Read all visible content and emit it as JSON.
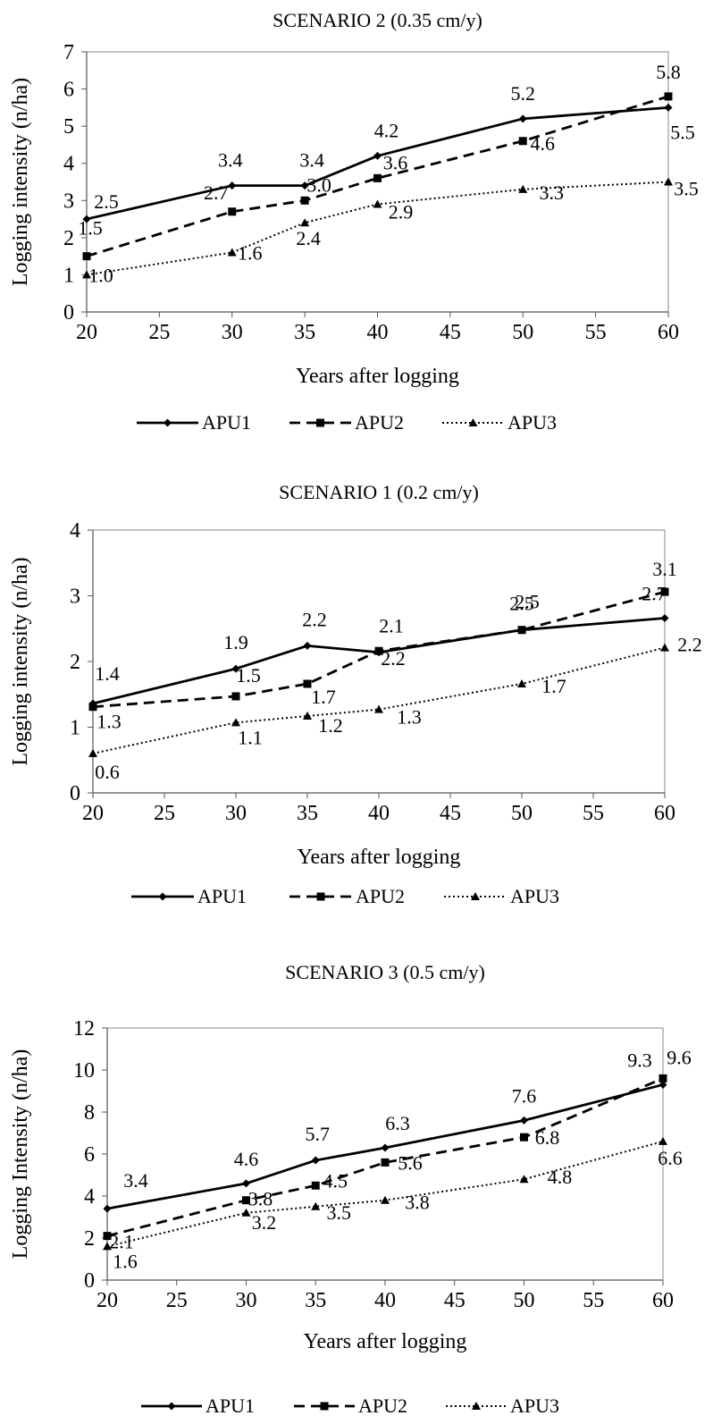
{
  "chart_data": [
    {
      "type": "line",
      "title": "SCENARIO 2 (0.35 cm/y)",
      "xlabel": "Years after logging",
      "ylabel": "Logging intensity (n/ha)",
      "x": [
        20,
        30,
        35,
        40,
        50,
        60
      ],
      "xticks": [
        20,
        25,
        30,
        35,
        40,
        45,
        50,
        55,
        60
      ],
      "xlim": [
        20,
        60
      ],
      "ylim": [
        0,
        7
      ],
      "yticks": [
        0,
        1,
        2,
        3,
        4,
        5,
        6,
        7
      ],
      "grid": false,
      "legend": "bottom",
      "series": [
        {
          "name": "APU1",
          "style": "solid",
          "marker": "diamond",
          "values": [
            2.5,
            3.4,
            3.4,
            4.2,
            5.2,
            5.5
          ],
          "labels": [
            "2.5",
            "3.4",
            "3.4",
            "4.2",
            "5.2",
            "5.5"
          ]
        },
        {
          "name": "APU2",
          "style": "dashed",
          "marker": "square",
          "values": [
            1.5,
            2.7,
            3.0,
            3.6,
            4.6,
            5.8
          ],
          "labels": [
            "1.5",
            "2.7",
            "3.0",
            "3.6",
            "4.6",
            "5.8"
          ]
        },
        {
          "name": "APU3",
          "style": "dotted",
          "marker": "triangle",
          "values": [
            1.0,
            1.6,
            2.4,
            2.9,
            3.3,
            3.5
          ],
          "labels": [
            "1.0",
            "1.6",
            "2.4",
            "2.9",
            "3.3",
            "3.5"
          ]
        }
      ]
    },
    {
      "type": "line",
      "title": "SCENARIO 1 (0.2 cm/y)",
      "xlabel": "Years after logging",
      "ylabel": "Logging intensity (n/ha)",
      "x": [
        20,
        30,
        35,
        40,
        50,
        60
      ],
      "xticks": [
        20,
        25,
        30,
        35,
        40,
        45,
        50,
        55,
        60
      ],
      "xlim": [
        20,
        60
      ],
      "ylim": [
        0,
        4
      ],
      "yticks": [
        0,
        1,
        2,
        3,
        4
      ],
      "grid": false,
      "legend": "bottom",
      "series": [
        {
          "name": "APU1",
          "style": "solid",
          "marker": "diamond",
          "values": [
            1.36,
            1.89,
            2.24,
            2.14,
            2.48,
            2.66
          ],
          "labels": [
            "1.4",
            "1.9",
            "2.2",
            "2.1",
            "2.5",
            "2.7"
          ]
        },
        {
          "name": "APU2",
          "style": "dashed",
          "marker": "square",
          "values": [
            1.31,
            1.47,
            1.66,
            2.16,
            2.48,
            3.06
          ],
          "labels": [
            "1.3",
            "1.5",
            "1.7",
            "2.2",
            "2.5",
            "3.1"
          ]
        },
        {
          "name": "APU3",
          "style": "dotted",
          "marker": "triangle",
          "values": [
            0.6,
            1.07,
            1.17,
            1.27,
            1.66,
            2.21
          ],
          "labels": [
            "0.6",
            "1.1",
            "1.2",
            "1.3",
            "1.7",
            "2.2"
          ]
        }
      ]
    },
    {
      "type": "line",
      "title": "SCENARIO 3 (0.5 cm/y)",
      "xlabel": "Years after logging",
      "ylabel": "Logging Intensity (n/ha)",
      "x": [
        20,
        30,
        35,
        40,
        50,
        60
      ],
      "xticks": [
        20,
        25,
        30,
        35,
        40,
        45,
        50,
        55,
        60
      ],
      "xlim": [
        20,
        60
      ],
      "ylim": [
        0,
        12
      ],
      "yticks": [
        0,
        2,
        4,
        6,
        8,
        10,
        12
      ],
      "grid": false,
      "legend": "bottom",
      "series": [
        {
          "name": "APU1",
          "style": "solid",
          "marker": "diamond",
          "values": [
            3.4,
            4.6,
            5.7,
            6.3,
            7.6,
            9.3
          ],
          "labels": [
            "3.4",
            "4.6",
            "5.7",
            "6.3",
            "7.6",
            "9.3"
          ]
        },
        {
          "name": "APU2",
          "style": "dashed",
          "marker": "square",
          "values": [
            2.1,
            3.8,
            4.5,
            5.6,
            6.8,
            9.6
          ],
          "labels": [
            "2.1",
            "3.8",
            "4.5",
            "5.6",
            "6.8",
            "9.6"
          ]
        },
        {
          "name": "APU3",
          "style": "dotted",
          "marker": "triangle",
          "values": [
            1.6,
            3.2,
            3.5,
            3.8,
            4.8,
            6.6
          ],
          "labels": [
            "1.6",
            "3.2",
            "3.5",
            "3.8",
            "4.8",
            "6.6"
          ]
        }
      ]
    }
  ]
}
